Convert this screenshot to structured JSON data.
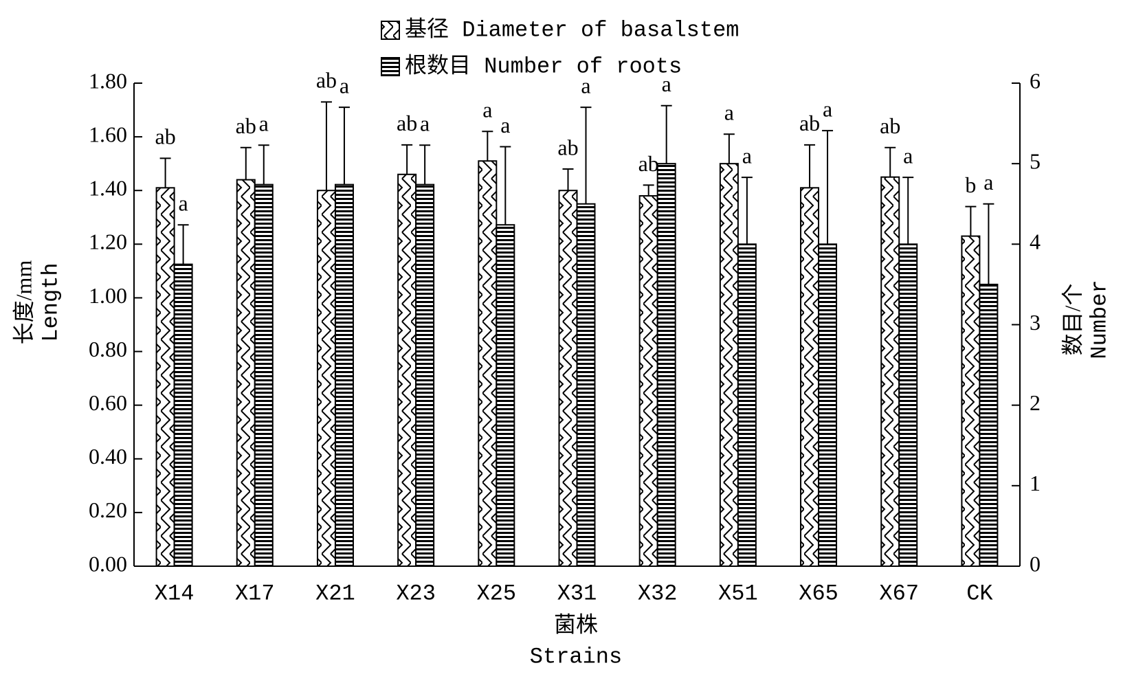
{
  "chart_data": {
    "type": "bar",
    "x_label": [
      "菌株",
      "Strains"
    ],
    "y_label": [
      "长度/mm",
      "Length"
    ],
    "y2_label": [
      "数目/个",
      "Number"
    ],
    "legend": "top",
    "categories": [
      "X14",
      "X17",
      "X21",
      "X23",
      "X25",
      "X31",
      "X32",
      "X51",
      "X65",
      "X67",
      "CK"
    ],
    "series": [
      {
        "name": "基径 Diameter of basalstem",
        "color": "#000000",
        "pattern": "zigzag",
        "values": [
          1.41,
          1.44,
          1.4,
          1.46,
          1.51,
          1.4,
          1.38,
          1.5,
          1.41,
          1.45,
          1.23
        ],
        "errors": [
          0.11,
          0.12,
          0.33,
          0.11,
          0.11,
          0.08,
          0.04,
          0.11,
          0.16,
          0.11,
          0.11
        ],
        "labels": [
          "ab",
          "ab",
          "ab",
          "ab",
          "a",
          "ab",
          "ab",
          "a",
          "ab",
          "ab",
          "b"
        ]
      },
      {
        "name": "根数目 Number of roots",
        "color": "#000000",
        "pattern": "horizontal",
        "axis": "y2",
        "values": [
          3.75,
          4.74,
          4.74,
          4.74,
          4.24,
          4.5,
          5.0,
          4.0,
          4.0,
          4.0,
          3.5
        ],
        "errors": [
          0.49,
          0.49,
          0.96,
          0.49,
          0.97,
          1.2,
          0.72,
          0.83,
          1.41,
          0.83,
          1.0
        ],
        "labels": [
          "a",
          "a",
          "a",
          "a",
          "a",
          "a",
          "a",
          "a",
          "a",
          "a",
          "a"
        ]
      }
    ],
    "ylim": [
      0,
      1.8
    ],
    "yticks": [
      {
        "value": 0,
        "label": "0.00"
      },
      {
        "value": 0.2,
        "label": "0.20"
      },
      {
        "value": 0.4,
        "label": "0.40"
      },
      {
        "value": 0.6,
        "label": "0.60"
      },
      {
        "value": 0.8,
        "label": "0.80"
      },
      {
        "value": 1.0,
        "label": "1.00"
      },
      {
        "value": 1.2,
        "label": "1.20"
      },
      {
        "value": 1.4,
        "label": "1.40"
      },
      {
        "value": 1.6,
        "label": "1.60"
      },
      {
        "value": 1.8,
        "label": "1.80"
      }
    ],
    "y2lim": [
      0,
      6
    ],
    "y2ticks": [
      0,
      1,
      2,
      3,
      4,
      5,
      6
    ]
  }
}
